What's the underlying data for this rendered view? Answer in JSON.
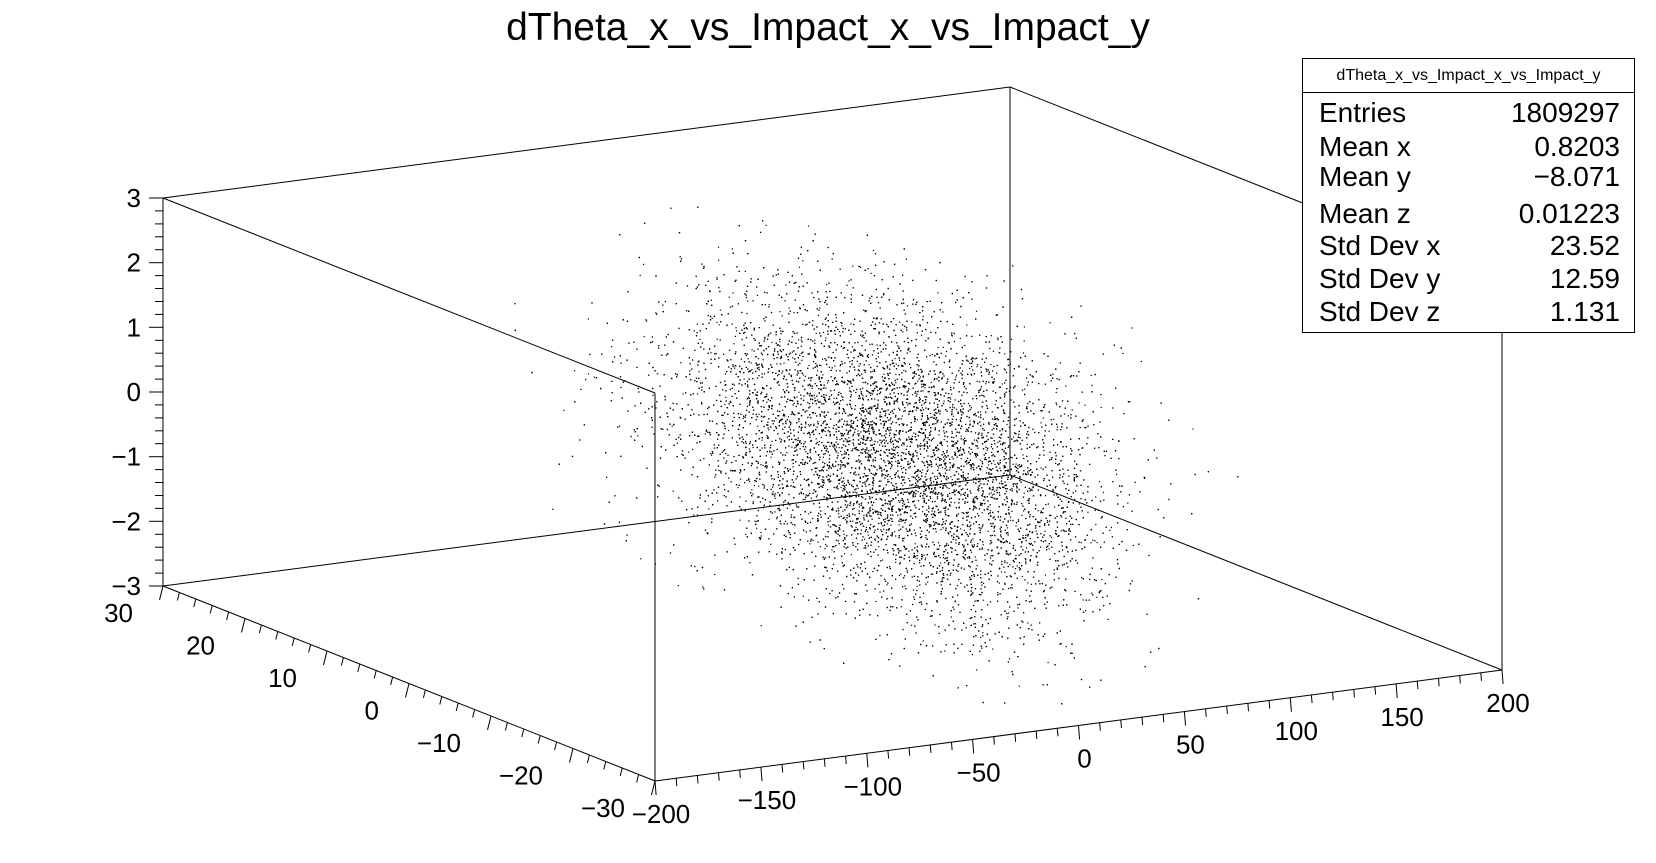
{
  "chart_data": {
    "type": "scatter",
    "title": "dTheta_x_vs_Impact_x_vs_Impact_y",
    "x_axis": {
      "range": [
        -200,
        200
      ],
      "major": [
        -200,
        -150,
        -100,
        -50,
        0,
        50,
        100,
        150,
        200
      ]
    },
    "y_axis": {
      "range": [
        -30,
        30
      ],
      "major": [
        -30,
        -20,
        -10,
        0,
        10,
        20,
        30
      ]
    },
    "z_axis": {
      "range": [
        -3,
        3
      ],
      "major": [
        -3,
        -2,
        -1,
        0,
        1,
        2,
        3
      ]
    },
    "tick_labels": {
      "x": [
        "−200",
        "−150",
        "−100",
        "−50",
        "0",
        "50",
        "100",
        "150",
        "200"
      ],
      "y": [
        "−30",
        "−20",
        "−10",
        "0",
        "10",
        "20",
        "30"
      ],
      "z": [
        "−3",
        "−2",
        "−1",
        "0",
        "1",
        "2",
        "3"
      ]
    },
    "grid": false,
    "point_color": "#000000",
    "distribution": {
      "entries": 1809297,
      "mean": {
        "x": 0.8203,
        "y": -8.071,
        "z": 0.01223
      },
      "std_dev": {
        "x": 23.52,
        "y": 12.59,
        "z": 1.131
      }
    },
    "stats_box": {
      "title": "dTheta_x_vs_Impact_x_vs_Impact_y",
      "placement": "top-right",
      "rows": [
        {
          "label": "Entries",
          "value": "1809297"
        },
        {
          "label": "Mean x",
          "value": "0.8203"
        },
        {
          "label": "Mean y",
          "value": "−8.071"
        },
        {
          "label": "Mean z",
          "value": "0.01223"
        },
        {
          "label": "Std Dev x",
          "value": "23.52"
        },
        {
          "label": "Std Dev y",
          "value": "12.59"
        },
        {
          "label": "Std Dev z",
          "value": "1.131"
        }
      ]
    }
  }
}
